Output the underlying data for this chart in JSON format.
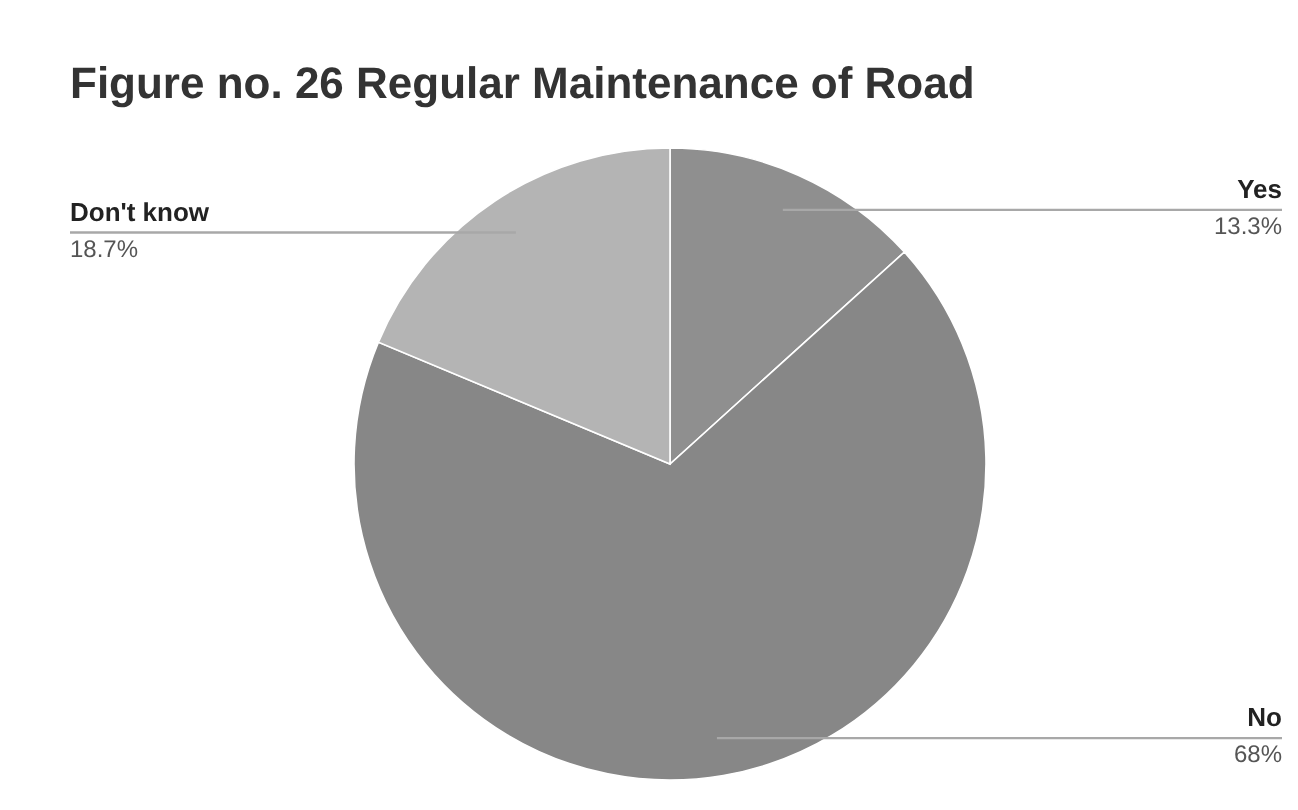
{
  "chart_data": {
    "type": "pie",
    "title": "Figure no. 26 Regular Maintenance of Road",
    "categories": [
      "Yes",
      "No",
      "Don't know"
    ],
    "values": [
      13.3,
      68,
      18.7
    ],
    "value_labels": [
      "13.3%",
      "68%",
      "18.7%"
    ],
    "colors": [
      "#8f8f8f",
      "#878787",
      "#b4b4b4"
    ]
  }
}
